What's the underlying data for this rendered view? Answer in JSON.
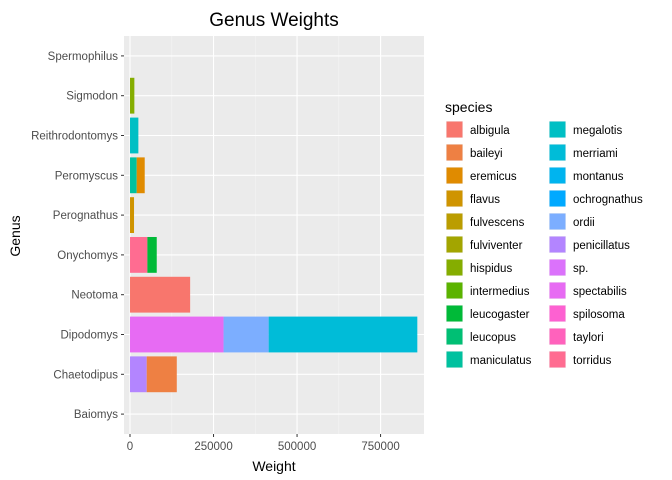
{
  "chart_data": {
    "type": "bar",
    "orientation": "horizontal",
    "stacked": true,
    "title": "Genus Weights",
    "xlabel": "Weight",
    "ylabel": "Genus",
    "xlim": [
      -18000,
      880000
    ],
    "x_ticks": [
      0,
      250000,
      500000,
      750000
    ],
    "grid": true,
    "legend_position": "right",
    "legend_title": "species",
    "categories": [
      "Baiomys",
      "Chaetodipus",
      "Dipodomys",
      "Neotoma",
      "Onychomys",
      "Perognathus",
      "Peromyscus",
      "Reithrodontomys",
      "Sigmodon",
      "Spermophilus"
    ],
    "species": [
      {
        "name": "albigula",
        "color": "#F8766D"
      },
      {
        "name": "baileyi",
        "color": "#EE8043"
      },
      {
        "name": "eremicus",
        "color": "#E08B00"
      },
      {
        "name": "flavus",
        "color": "#CF9400"
      },
      {
        "name": "fulvescens",
        "color": "#BB9D00"
      },
      {
        "name": "fulviventer",
        "color": "#A3A500"
      },
      {
        "name": "hispidus",
        "color": "#85AD00"
      },
      {
        "name": "intermedius",
        "color": "#5BB300"
      },
      {
        "name": "leucogaster",
        "color": "#00BA38"
      },
      {
        "name": "leucopus",
        "color": "#00BF74"
      },
      {
        "name": "maniculatus",
        "color": "#00C19F"
      },
      {
        "name": "megalotis",
        "color": "#00BFC4"
      },
      {
        "name": "merriami",
        "color": "#00BCD8"
      },
      {
        "name": "montanus",
        "color": "#00B4EF"
      },
      {
        "name": "ochrognathus",
        "color": "#00A9FF"
      },
      {
        "name": "ordii",
        "color": "#7CAEFF"
      },
      {
        "name": "penicillatus",
        "color": "#B385FF"
      },
      {
        "name": "sp.",
        "color": "#DB72FB"
      },
      {
        "name": "spectabilis",
        "color": "#E76BF3"
      },
      {
        "name": "spilosoma",
        "color": "#FD61D1"
      },
      {
        "name": "taylori",
        "color": "#FF62BC"
      },
      {
        "name": "torridus",
        "color": "#FF6C91"
      }
    ],
    "segments": [
      {
        "genus": "Chaetodipus",
        "species": "penicillatus",
        "value": 50000
      },
      {
        "genus": "Chaetodipus",
        "species": "baileyi",
        "value": 90000
      },
      {
        "genus": "Dipodomys",
        "species": "spectabilis",
        "value": 280000
      },
      {
        "genus": "Dipodomys",
        "species": "ordii",
        "value": 135000
      },
      {
        "genus": "Dipodomys",
        "species": "merriami",
        "value": 445000
      },
      {
        "genus": "Neotoma",
        "species": "albigula",
        "value": 180000
      },
      {
        "genus": "Onychomys",
        "species": "torridus",
        "value": 52000
      },
      {
        "genus": "Onychomys",
        "species": "leucogaster",
        "value": 28000
      },
      {
        "genus": "Perognathus",
        "species": "flavus",
        "value": 12000
      },
      {
        "genus": "Peromyscus",
        "species": "maniculatus",
        "value": 20000
      },
      {
        "genus": "Peromyscus",
        "species": "eremicus",
        "value": 24000
      },
      {
        "genus": "Reithrodontomys",
        "species": "megalotis",
        "value": 25000
      },
      {
        "genus": "Sigmodon",
        "species": "hispidus",
        "value": 13000
      }
    ]
  }
}
